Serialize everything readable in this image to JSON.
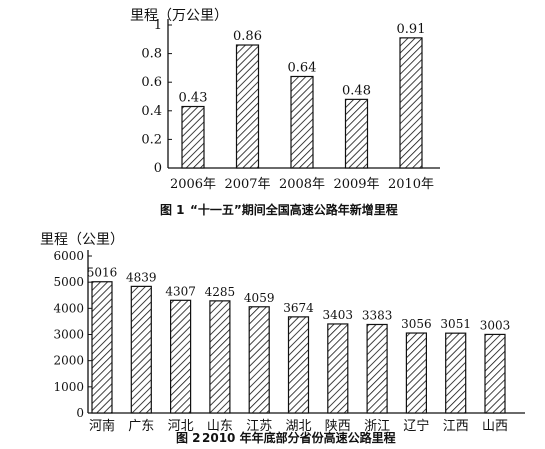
{
  "chart_data": [
    {
      "type": "bar",
      "ylabel": "里程（万公里）",
      "categories": [
        "2006年",
        "2007年",
        "2008年",
        "2009年",
        "2010年"
      ],
      "values": [
        0.43,
        0.86,
        0.64,
        0.48,
        0.91
      ],
      "value_labels": [
        "0.43",
        "0.86",
        "0.64",
        "0.48",
        "0.91"
      ],
      "ylim": [
        0,
        1
      ],
      "yticks": [
        "0",
        "0.2",
        "0.4",
        "0.6",
        "0.8",
        "1"
      ],
      "caption_num": "图 1",
      "caption": "“十一五”期间全国高速公路年新增里程",
      "bar_pattern": "diagonal-hatch"
    },
    {
      "type": "bar",
      "ylabel": "里程（公里）",
      "categories": [
        "河南",
        "广东",
        "河北",
        "山东",
        "江苏",
        "湖北",
        "陕西",
        "浙江",
        "辽宁",
        "江西",
        "山西"
      ],
      "values": [
        5016,
        4839,
        4307,
        4285,
        4059,
        3674,
        3403,
        3383,
        3056,
        3051,
        3003
      ],
      "value_labels": [
        "5016",
        "4839",
        "4307",
        "4285",
        "4059",
        "3674",
        "3403",
        "3383",
        "3056",
        "3051",
        "3003"
      ],
      "ylim": [
        0,
        6000
      ],
      "yticks": [
        "0",
        "1000",
        "2000",
        "3000",
        "4000",
        "5000",
        "6000"
      ],
      "caption_num": "图 2",
      "caption": "2010 年年底部分省份高速公路里程",
      "bar_pattern": "diagonal-hatch"
    }
  ]
}
